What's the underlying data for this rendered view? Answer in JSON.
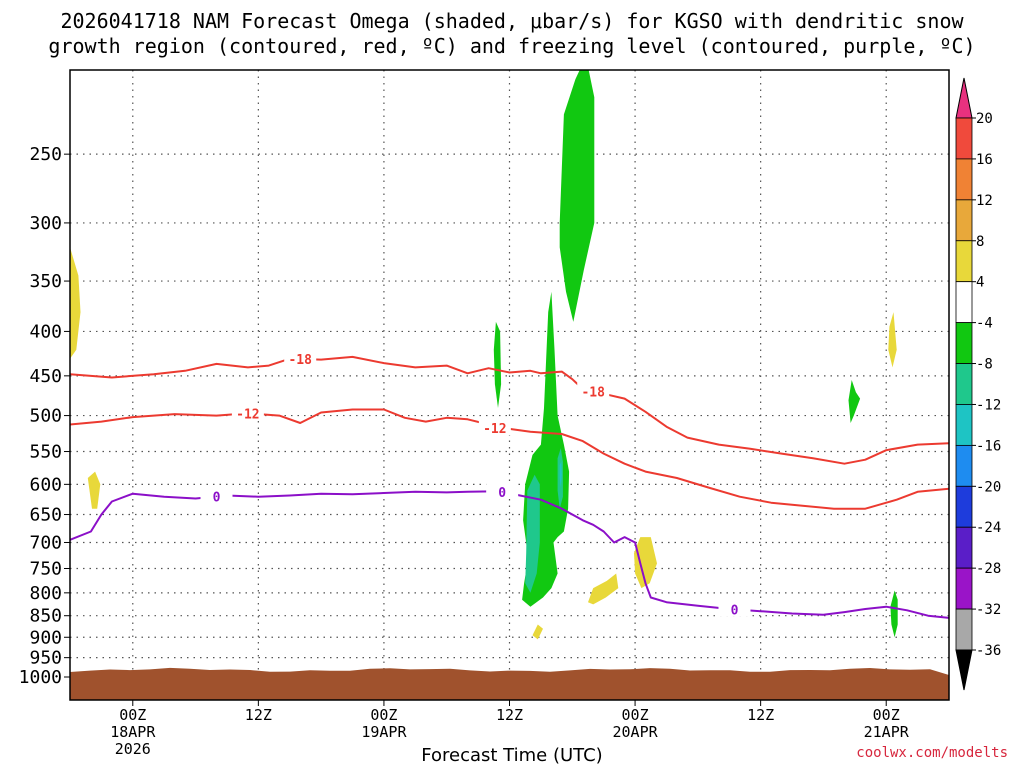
{
  "title_line1": "2026041718 NAM Forecast Omega (shaded, μbar/s) for KGSO with dendritic snow",
  "title_line2": "growth region (contoured, red, ºC) and freezing level (contoured, purple, ºC)",
  "xlabel": "Forecast Time (UTC)",
  "credit": "coolwx.com/modelts",
  "chart_data": {
    "type": "heatmap",
    "y_scale": "log-pressure",
    "y_ticks": [
      250,
      300,
      350,
      400,
      450,
      500,
      550,
      600,
      650,
      700,
      750,
      800,
      850,
      900,
      950,
      1000
    ],
    "ylim": [
      200,
      1000
    ],
    "x_ticks": [
      {
        "hour": 6,
        "labels": [
          "00Z",
          "18APR",
          "2026"
        ]
      },
      {
        "hour": 18,
        "labels": [
          "12Z"
        ]
      },
      {
        "hour": 30,
        "labels": [
          "00Z",
          "19APR"
        ]
      },
      {
        "hour": 42,
        "labels": [
          "12Z"
        ]
      },
      {
        "hour": 54,
        "labels": [
          "00Z",
          "20APR"
        ]
      },
      {
        "hour": 66,
        "labels": [
          "12Z"
        ]
      },
      {
        "hour": 78,
        "labels": [
          "00Z",
          "21APR"
        ]
      }
    ],
    "xlim": [
      0,
      84
    ],
    "colorbar": {
      "labels": [
        "20",
        "16",
        "12",
        "8",
        "4",
        "-4",
        "-8",
        "-12",
        "-16",
        "-20",
        "-24",
        "-28",
        "-32",
        "-36"
      ],
      "colors": [
        "#e8317f",
        "#f04a3c",
        "#f08234",
        "#e8a83a",
        "#e8d83a",
        "#ffffff",
        "#11c811",
        "#1fc88c",
        "#1ec4c4",
        "#1e8cf0",
        "#1e3cdc",
        "#5a1ec8",
        "#9a14c8",
        "#a8a8a8",
        "#000000"
      ]
    },
    "contours": [
      {
        "label": "-18",
        "color": "#ec3a30",
        "label_hour": 22,
        "points": [
          [
            0,
            448
          ],
          [
            4,
            452
          ],
          [
            8,
            448
          ],
          [
            11,
            444
          ],
          [
            14,
            436
          ],
          [
            17,
            440
          ],
          [
            19,
            438
          ],
          [
            21,
            430
          ],
          [
            24,
            431
          ],
          [
            27,
            428
          ],
          [
            30,
            435
          ],
          [
            33,
            440
          ],
          [
            36,
            438
          ],
          [
            38,
            447
          ],
          [
            40,
            441
          ],
          [
            42,
            446
          ],
          [
            44,
            444
          ],
          [
            45,
            447
          ],
          [
            47,
            445
          ],
          [
            48,
            454
          ],
          [
            49,
            466
          ],
          [
            51,
            472
          ],
          [
            53,
            478
          ],
          [
            55,
            495
          ],
          [
            57,
            515
          ],
          [
            59,
            530
          ],
          [
            62,
            540
          ],
          [
            65,
            546
          ],
          [
            68,
            553
          ],
          [
            71,
            560
          ],
          [
            74,
            568
          ],
          [
            76,
            562
          ],
          [
            78,
            548
          ],
          [
            81,
            540
          ],
          [
            84,
            538
          ]
        ]
      },
      {
        "label": "-12",
        "color": "#ec3a30",
        "label_hour": 17,
        "points": [
          [
            0,
            512
          ],
          [
            3,
            508
          ],
          [
            6,
            502
          ],
          [
            10,
            498
          ],
          [
            14,
            500
          ],
          [
            17,
            497
          ],
          [
            20,
            500
          ],
          [
            22,
            510
          ],
          [
            24,
            496
          ],
          [
            27,
            492
          ],
          [
            30,
            492
          ],
          [
            32,
            503
          ],
          [
            34,
            508
          ],
          [
            36,
            503
          ],
          [
            38,
            505
          ],
          [
            40,
            512
          ],
          [
            41,
            520
          ],
          [
            42,
            518
          ],
          [
            44,
            522
          ],
          [
            47,
            525
          ],
          [
            49,
            535
          ],
          [
            51,
            553
          ],
          [
            53,
            568
          ],
          [
            55,
            580
          ],
          [
            58,
            590
          ],
          [
            61,
            605
          ],
          [
            64,
            620
          ],
          [
            67,
            630
          ],
          [
            70,
            635
          ],
          [
            73,
            640
          ],
          [
            76,
            640
          ],
          [
            79,
            625
          ],
          [
            81,
            612
          ],
          [
            84,
            607
          ]
        ]
      },
      {
        "label": "0",
        "color": "#8b0fc8",
        "label_hour": 14,
        "points": [
          [
            0,
            695
          ],
          [
            2,
            680
          ],
          [
            3,
            650
          ],
          [
            4,
            628
          ],
          [
            6,
            615
          ],
          [
            9,
            620
          ],
          [
            12,
            623
          ],
          [
            15,
            618
          ],
          [
            18,
            620
          ],
          [
            21,
            618
          ],
          [
            24,
            615
          ],
          [
            27,
            616
          ],
          [
            30,
            614
          ],
          [
            33,
            612
          ],
          [
            36,
            613
          ],
          [
            38,
            612
          ],
          [
            41,
            611
          ],
          [
            43,
            618
          ],
          [
            45,
            625
          ],
          [
            47,
            640
          ],
          [
            49,
            660
          ],
          [
            50,
            668
          ],
          [
            51,
            680
          ],
          [
            52,
            700
          ],
          [
            53,
            690
          ],
          [
            54,
            700
          ],
          [
            54.5,
            740
          ],
          [
            55,
            780
          ],
          [
            55.5,
            810
          ],
          [
            57,
            820
          ],
          [
            60,
            828
          ],
          [
            63,
            835
          ],
          [
            66,
            840
          ],
          [
            69,
            845
          ],
          [
            72,
            848
          ],
          [
            74,
            842
          ],
          [
            76,
            835
          ],
          [
            78,
            830
          ],
          [
            80,
            838
          ],
          [
            82,
            850
          ],
          [
            84,
            855
          ]
        ]
      }
    ],
    "shaded_regions": [
      {
        "class": "4 to 8",
        "color": "#e8d83a",
        "points": [
          [
            0,
            320
          ],
          [
            0.8,
            345
          ],
          [
            1,
            380
          ],
          [
            0.6,
            420
          ],
          [
            0,
            430
          ]
        ]
      },
      {
        "class": "4 to 8",
        "color": "#e8d83a",
        "points": [
          [
            1.7,
            590
          ],
          [
            2.4,
            580
          ],
          [
            2.9,
            600
          ],
          [
            2.6,
            640
          ],
          [
            2.1,
            640
          ]
        ]
      },
      {
        "class": "4 to 8",
        "color": "#e8d83a",
        "points": [
          [
            78.3,
            395
          ],
          [
            78.7,
            380
          ],
          [
            79,
            420
          ],
          [
            78.6,
            440
          ],
          [
            78.2,
            420
          ]
        ]
      },
      {
        "class": "4 to 8",
        "color": "#e8d83a",
        "points": [
          [
            49.5,
            820
          ],
          [
            50,
            790
          ],
          [
            51.3,
            775
          ],
          [
            52.2,
            760
          ],
          [
            52.4,
            790
          ],
          [
            51.2,
            810
          ],
          [
            50,
            825
          ]
        ]
      },
      {
        "class": "4 to 8",
        "color": "#e8d83a",
        "points": [
          [
            53.9,
            720
          ],
          [
            54.5,
            690
          ],
          [
            55.5,
            690
          ],
          [
            56.1,
            740
          ],
          [
            55.4,
            780
          ],
          [
            54.6,
            790
          ],
          [
            54,
            760
          ]
        ]
      },
      {
        "class": "4 to 8",
        "color": "#e8d83a",
        "points": [
          [
            44.2,
            895
          ],
          [
            44.7,
            870
          ],
          [
            45.2,
            880
          ],
          [
            44.7,
            905
          ]
        ]
      },
      {
        "class": "-4 to -8",
        "color": "#11c811",
        "points": [
          [
            46.8,
            300
          ],
          [
            47.2,
            225
          ],
          [
            48.3,
            205
          ],
          [
            49.3,
            193
          ],
          [
            50.1,
            215
          ],
          [
            50.1,
            300
          ],
          [
            49.1,
            340
          ],
          [
            48.1,
            390
          ],
          [
            47.4,
            360
          ],
          [
            46.8,
            320
          ]
        ]
      },
      {
        "class": "-4 to -8",
        "color": "#11c811",
        "points": [
          [
            40.5,
            420
          ],
          [
            40.7,
            390
          ],
          [
            41.1,
            400
          ],
          [
            41.2,
            460
          ],
          [
            40.9,
            490
          ],
          [
            40.6,
            460
          ]
        ]
      },
      {
        "class": "-4 to -8",
        "color": "#11c811",
        "points": [
          [
            74.4,
            480
          ],
          [
            74.7,
            455
          ],
          [
            75.1,
            470
          ],
          [
            75.5,
            478
          ],
          [
            74.9,
            500
          ],
          [
            74.6,
            510
          ]
        ]
      },
      {
        "class": "-4 to -8",
        "color": "#11c811",
        "points": [
          [
            78.4,
            830
          ],
          [
            78.8,
            795
          ],
          [
            79.1,
            815
          ],
          [
            79.1,
            870
          ],
          [
            78.8,
            900
          ],
          [
            78.5,
            870
          ]
        ]
      },
      {
        "class": "-4 to -8",
        "color": "#11c811",
        "points": [
          [
            45.3,
            490
          ],
          [
            45.7,
            380
          ],
          [
            46.0,
            360
          ],
          [
            46.3,
            420
          ],
          [
            46.6,
            500
          ],
          [
            47.2,
            540
          ],
          [
            47.7,
            580
          ],
          [
            47.6,
            640
          ],
          [
            47.2,
            680
          ],
          [
            46.6,
            690
          ],
          [
            46.2,
            700
          ],
          [
            46.6,
            760
          ],
          [
            46.0,
            790
          ],
          [
            45.2,
            810
          ],
          [
            44.0,
            830
          ],
          [
            43.2,
            815
          ],
          [
            43.4,
            780
          ],
          [
            43.8,
            730
          ],
          [
            43.3,
            660
          ],
          [
            43.5,
            600
          ],
          [
            44.2,
            555
          ],
          [
            45.0,
            540
          ]
        ]
      },
      {
        "class": "-8 to -12",
        "color": "#1fc88c",
        "points": [
          [
            43.7,
            610
          ],
          [
            44.4,
            585
          ],
          [
            44.9,
            600
          ],
          [
            44.9,
            700
          ],
          [
            44.6,
            760
          ],
          [
            44.0,
            800
          ],
          [
            43.5,
            780
          ],
          [
            43.6,
            720
          ]
        ]
      },
      {
        "class": "-8 to -12",
        "color": "#1fc88c",
        "points": [
          [
            46.6,
            560
          ],
          [
            46.9,
            545
          ],
          [
            47.1,
            565
          ],
          [
            47.1,
            620
          ],
          [
            46.8,
            640
          ],
          [
            46.6,
            610
          ]
        ]
      },
      {
        "class": "-12 to -16",
        "color": "#1ec4c4",
        "points": [
          [
            46.8,
            570
          ],
          [
            46.95,
            565
          ],
          [
            47.0,
            585
          ],
          [
            46.9,
            605
          ],
          [
            46.8,
            590
          ]
        ]
      }
    ],
    "surface_fill": {
      "color": "#a0522d",
      "description": "terrain below ground level near 1000 hPa"
    }
  }
}
